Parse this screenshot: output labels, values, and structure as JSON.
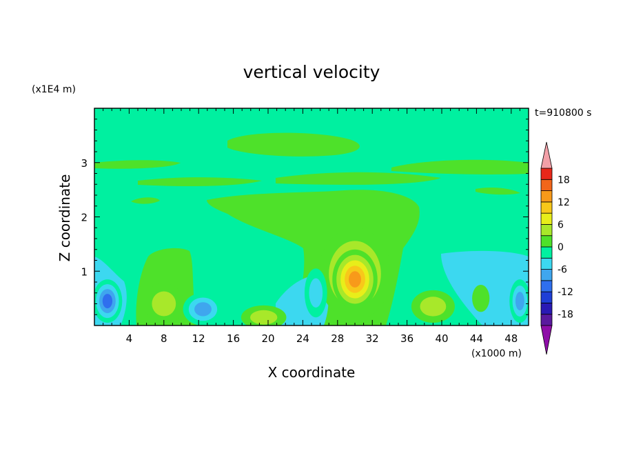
{
  "chart_data": {
    "type": "heatmap",
    "title": "vertical velocity",
    "xlabel": "X coordinate",
    "ylabel": "Z coordinate",
    "x_unit": "(x1000 m)",
    "y_unit": "(x1E4 m)",
    "time_label": "t=910800 s",
    "xlim": [
      0,
      50
    ],
    "ylim": [
      0,
      4
    ],
    "x_ticks": [
      4,
      8,
      12,
      16,
      20,
      24,
      28,
      32,
      36,
      40,
      44,
      48
    ],
    "y_ticks": [
      1,
      2,
      3
    ],
    "colorbar": {
      "ticks": [
        18,
        12,
        6,
        0,
        -6,
        -12,
        -18
      ],
      "levels": [
        -21,
        -18,
        -15,
        -12,
        -9,
        -6,
        -3,
        0,
        3,
        6,
        9,
        12,
        15,
        18,
        21
      ],
      "colors": [
        "#5a1a9e",
        "#2a1ab4",
        "#1f3fd6",
        "#2f6fee",
        "#3fa6ee",
        "#3cd8f0",
        "#00f0a0",
        "#4ee12a",
        "#a8e82a",
        "#e8ee1a",
        "#f8c81a",
        "#f89a1a",
        "#f2661a",
        "#e8281a"
      ],
      "under_color": "#8e0ea8",
      "over_color": "#f2a0a8"
    },
    "features": [
      {
        "x": 30,
        "z": 0.95,
        "rx": 4.2,
        "rz": 0.85,
        "value": 8
      },
      {
        "x": 30,
        "z": 0.85,
        "rx": 2.6,
        "rz": 0.55,
        "value": 14
      },
      {
        "x": 8,
        "z": 0.4,
        "rx": 2.3,
        "rz": 0.38,
        "value": 7
      },
      {
        "x": 12.5,
        "z": 0.3,
        "rx": 2.3,
        "rz": 0.3,
        "value": -10
      },
      {
        "x": 1.5,
        "z": 0.45,
        "rx": 1.7,
        "rz": 0.4,
        "value": -11
      },
      {
        "x": 19.5,
        "z": 0.15,
        "rx": 2.6,
        "rz": 0.22,
        "value": 5
      },
      {
        "x": 25.5,
        "z": 0.6,
        "rx": 1.3,
        "rz": 0.45,
        "value": -7
      },
      {
        "x": 39,
        "z": 0.35,
        "rx": 2.5,
        "rz": 0.3,
        "value": 5
      },
      {
        "x": 49,
        "z": 0.45,
        "rx": 1.2,
        "rz": 0.4,
        "value": -9
      },
      {
        "x": 44.5,
        "z": 0.5,
        "rx": 1.0,
        "rz": 0.25,
        "value": 4
      }
    ]
  }
}
